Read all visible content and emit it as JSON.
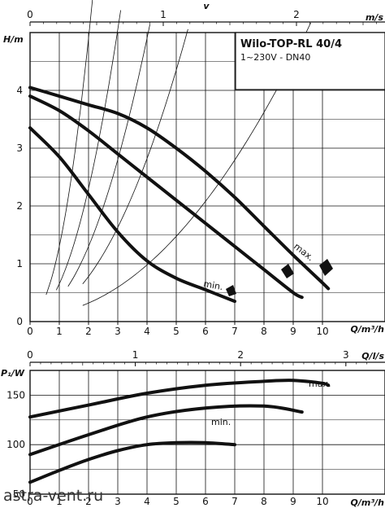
{
  "chart_data": [
    {
      "type": "line",
      "title": "Wilo-TOP-RL 40/4",
      "subtitle": "1~230V - DN40",
      "xlabel": "Q/m³/h",
      "ylabel": "H/m",
      "xlim": [
        0,
        12
      ],
      "ylim": [
        0,
        5
      ],
      "x_ticks": [
        0,
        1,
        2,
        3,
        4,
        5,
        6,
        7,
        8,
        9,
        10
      ],
      "y_ticks": [
        0,
        1,
        2,
        3,
        4
      ],
      "grid": true,
      "secondary_axis_label": "v",
      "secondary_axis_unit": "m/s",
      "secondary_axis_ticks": [
        0,
        1,
        2
      ],
      "annotations": [
        "max.",
        "min."
      ],
      "series": [
        {
          "name": "max.",
          "x": [
            0,
            1,
            2,
            3,
            4,
            5,
            6,
            7,
            8,
            9,
            10,
            10.2
          ],
          "y": [
            4.05,
            3.9,
            3.75,
            3.6,
            3.35,
            3.0,
            2.6,
            2.15,
            1.65,
            1.15,
            0.67,
            0.57
          ]
        },
        {
          "name": "",
          "x": [
            0,
            1,
            2,
            3,
            4,
            5,
            6,
            7,
            8,
            9,
            9.3
          ],
          "y": [
            3.9,
            3.65,
            3.3,
            2.9,
            2.5,
            2.1,
            1.7,
            1.3,
            0.9,
            0.5,
            0.42
          ]
        },
        {
          "name": "min.",
          "x": [
            0,
            1,
            2,
            3,
            4,
            5,
            6,
            7
          ],
          "y": [
            3.35,
            2.85,
            2.2,
            1.55,
            1.05,
            0.75,
            0.55,
            0.35
          ]
        }
      ]
    },
    {
      "type": "line",
      "xlabel": "Q/m³/h",
      "ylabel": "P₁/W",
      "xlim": [
        0,
        12
      ],
      "ylim": [
        50,
        175
      ],
      "x_ticks": [
        0,
        1,
        2,
        3,
        4,
        5,
        6,
        7,
        8,
        9,
        10
      ],
      "y_ticks": [
        50,
        100,
        150
      ],
      "grid": true,
      "secondary_axis_unit": "Q/l/s",
      "secondary_axis_ticks": [
        0,
        1,
        2,
        3
      ],
      "annotations": [
        "max.",
        "min."
      ],
      "series": [
        {
          "name": "max.",
          "x": [
            0,
            2,
            4,
            6,
            8,
            9,
            10,
            10.2
          ],
          "y": [
            128,
            140,
            152,
            160,
            164,
            165,
            162,
            160
          ]
        },
        {
          "name": "",
          "x": [
            0,
            2,
            4,
            6,
            8,
            9.3
          ],
          "y": [
            90,
            110,
            128,
            137,
            139,
            133
          ]
        },
        {
          "name": "min.",
          "x": [
            0,
            1,
            2,
            3,
            4,
            5,
            6,
            7
          ],
          "y": [
            62,
            74,
            85,
            94,
            100,
            102,
            102,
            100
          ]
        }
      ]
    }
  ],
  "watermark": "astra-vent.ru"
}
